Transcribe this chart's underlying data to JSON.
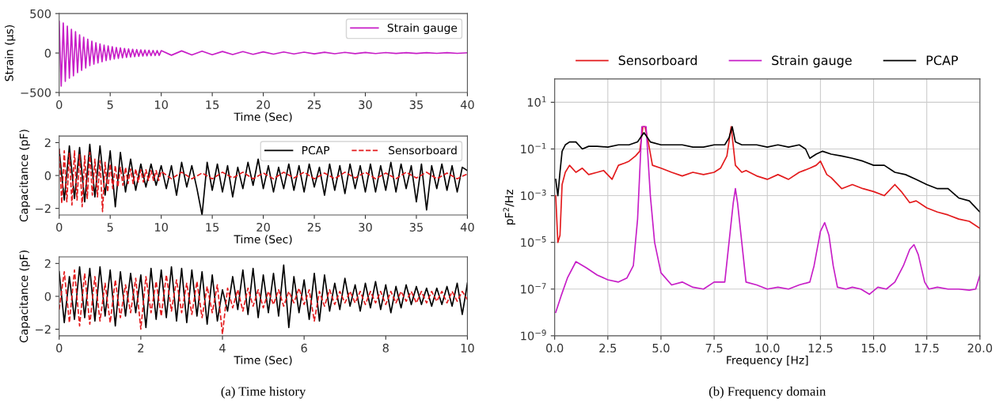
{
  "chart_data": [
    {
      "type": "line",
      "xlabel": "Time (Sec)",
      "ylabel": "Strain (μs)",
      "xlim": [
        0,
        40
      ],
      "ylim": [
        -500,
        500
      ],
      "xticks": [
        0,
        5,
        10,
        15,
        20,
        25,
        30,
        35,
        40
      ],
      "yticks": [
        {
          "value": -500,
          "label": "−500"
        },
        0,
        500
      ],
      "grid": false,
      "legend": "top right",
      "x": [
        0,
        0.2,
        0.4,
        0.6,
        0.8,
        1.0,
        1.2,
        1.4,
        1.6,
        1.8,
        2.0,
        2.2,
        2.4,
        2.6,
        2.8,
        3.0,
        3.2,
        3.4,
        3.6,
        3.8,
        4.0,
        4.2,
        4.4,
        4.6,
        4.8,
        5.0,
        5.2,
        5.4,
        5.6,
        5.8,
        6.0,
        6.2,
        6.4,
        6.6,
        6.8,
        7.0,
        7.2,
        7.4,
        7.6,
        7.8,
        8.0,
        8.2,
        8.4,
        8.6,
        8.8,
        9.0,
        9.2,
        9.4,
        9.6,
        9.8,
        10,
        11,
        12,
        13,
        14,
        15,
        16,
        17,
        18,
        19,
        20,
        21,
        22,
        23,
        24,
        25,
        26,
        27,
        28,
        29,
        30,
        31,
        32,
        33,
        34,
        35,
        36,
        37,
        38,
        39,
        40
      ],
      "series": [
        {
          "name": "Strain gauge",
          "color": "#c71ec7",
          "line_style": "solid",
          "values": [
            400,
            -420,
            380,
            -360,
            340,
            -320,
            300,
            -290,
            270,
            -250,
            230,
            -220,
            200,
            -190,
            175,
            -160,
            150,
            -140,
            130,
            -125,
            115,
            -110,
            100,
            -95,
            90,
            -85,
            80,
            -75,
            70,
            -68,
            65,
            -60,
            58,
            -55,
            52,
            -50,
            48,
            -46,
            44,
            -42,
            40,
            -38,
            37,
            -36,
            35,
            -34,
            33,
            -32,
            31,
            -30,
            30,
            -28,
            27,
            -25,
            24,
            -22,
            20,
            -19,
            18,
            -17,
            15,
            -14,
            13,
            -12,
            11,
            -10,
            10,
            -9,
            8,
            -8,
            7,
            -7,
            6,
            -6,
            5,
            -5,
            5,
            -4,
            4,
            -4,
            3
          ]
        }
      ]
    },
    {
      "type": "line",
      "xlabel": "Time (Sec)",
      "ylabel": "Capacitance (pF)",
      "xlim": [
        0,
        40
      ],
      "ylim": [
        -2.4,
        2.4
      ],
      "xticks": [
        0,
        5,
        10,
        15,
        20,
        25,
        30,
        35,
        40
      ],
      "yticks": [
        {
          "value": -2,
          "label": "−2"
        },
        0,
        2
      ],
      "grid": false,
      "legend": "top right",
      "series": [
        {
          "name": "PCAP",
          "color": "#000000",
          "line_style": "solid",
          "x": [
            0,
            0.5,
            1,
            1.5,
            2,
            2.5,
            3,
            3.5,
            4,
            4.5,
            5,
            5.5,
            6,
            6.5,
            7,
            7.5,
            8,
            8.5,
            9,
            9.5,
            10,
            10.5,
            11,
            11.5,
            12,
            12.5,
            13,
            13.5,
            14,
            14.5,
            15,
            15.5,
            16,
            16.5,
            17,
            17.5,
            18,
            18.5,
            19,
            19.5,
            20,
            20.5,
            21,
            21.5,
            22,
            22.5,
            23,
            23.5,
            24,
            24.5,
            25,
            25.5,
            26,
            26.5,
            27,
            27.5,
            28,
            28.5,
            29,
            29.5,
            30,
            30.5,
            31,
            31.5,
            32,
            32.5,
            33,
            33.5,
            34,
            34.5,
            35,
            35.5,
            36,
            36.5,
            37,
            37.5,
            38,
            38.5,
            39,
            39.5,
            40
          ],
          "values": [
            1.6,
            -1.5,
            1.8,
            -1.4,
            1.7,
            -1.6,
            1.9,
            -1.3,
            1.8,
            -1.2,
            1.5,
            -1.9,
            1.4,
            -1.0,
            1.0,
            -0.9,
            0.7,
            -0.7,
            0.7,
            -0.6,
            0.6,
            -0.8,
            0.6,
            -1.2,
            0.8,
            -0.7,
            0.6,
            -0.8,
            -2.4,
            0.8,
            -0.9,
            0.7,
            -1.0,
            0.6,
            -1.3,
            0.5,
            -0.8,
            0.8,
            -0.6,
            1.0,
            -0.8,
            0.6,
            -1.0,
            0.5,
            -0.8,
            0.7,
            -0.9,
            0.6,
            -1.0,
            0.7,
            -0.7,
            0.5,
            -1.2,
            0.7,
            -0.9,
            0.6,
            -1.1,
            0.7,
            -0.8,
            0.6,
            -1.0,
            0.7,
            -1.0,
            0.6,
            -0.9,
            0.8,
            -1.0,
            0.7,
            -0.8,
            0.6,
            -1.6,
            0.7,
            -2.1,
            0.6,
            -0.8,
            0.7,
            -0.9,
            0.6,
            -1.0,
            0.5,
            0.3
          ]
        },
        {
          "name": "Sensorboard",
          "color": "#e31a1c",
          "line_style": "dashed",
          "x": [
            0,
            0.25,
            0.5,
            0.75,
            1,
            1.25,
            1.5,
            1.75,
            2,
            2.25,
            2.5,
            2.75,
            3,
            3.25,
            3.5,
            3.75,
            4,
            4.25,
            4.5,
            4.75,
            5,
            5.25,
            5.5,
            5.75,
            6,
            6.25,
            6.5,
            6.75,
            7,
            7.25,
            7.5,
            7.75,
            8,
            8.25,
            8.5,
            8.75,
            9,
            9.25,
            9.5,
            9.75,
            10,
            11,
            12,
            13,
            14,
            15,
            16,
            17,
            18,
            19,
            20,
            21,
            22,
            23,
            24,
            25,
            26,
            27,
            28,
            29,
            30,
            31,
            32,
            33,
            34,
            35,
            36,
            37,
            38,
            39,
            40
          ],
          "values": [
            1.6,
            -1.7,
            1.5,
            -1.6,
            1.4,
            -1.8,
            1.5,
            -1.5,
            1.3,
            -1.9,
            1.2,
            -1.4,
            1.4,
            -1.2,
            1.0,
            -1.3,
            0.9,
            -2.2,
            0.8,
            -1.0,
            0.7,
            -0.8,
            0.6,
            -0.7,
            0.5,
            -0.6,
            0.5,
            -0.5,
            0.4,
            -0.5,
            0.4,
            -0.4,
            0.35,
            -0.4,
            0.35,
            -0.3,
            0.3,
            -0.3,
            0.3,
            -0.3,
            0.25,
            -0.2,
            0.2,
            -0.2,
            0.15,
            -0.2,
            0.2,
            -0.15,
            0.2,
            -0.2,
            0.15,
            -0.2,
            0.2,
            -0.15,
            0.2,
            -0.2,
            0.15,
            -0.2,
            0.2,
            -0.15,
            0.2,
            -0.2,
            0.15,
            -0.2,
            0.2,
            -0.15,
            0.2,
            -0.2,
            0.15,
            -0.2,
            0.1
          ]
        }
      ]
    },
    {
      "type": "line",
      "xlabel": "Time (Sec)",
      "ylabel": "Capacitance (pF)",
      "xlim": [
        0,
        10
      ],
      "ylim": [
        -2.4,
        2.4
      ],
      "xticks": [
        0,
        2,
        4,
        6,
        8,
        10
      ],
      "yticks": [
        {
          "value": -2,
          "label": "−2"
        },
        0,
        2
      ],
      "grid": false,
      "annotations": [
        "(a) Time history"
      ],
      "x": [
        0,
        0.125,
        0.25,
        0.375,
        0.5,
        0.625,
        0.75,
        0.875,
        1,
        1.125,
        1.25,
        1.375,
        1.5,
        1.625,
        1.75,
        1.875,
        2,
        2.125,
        2.25,
        2.375,
        2.5,
        2.625,
        2.75,
        2.875,
        3,
        3.125,
        3.25,
        3.375,
        3.5,
        3.625,
        3.75,
        3.875,
        4,
        4.125,
        4.25,
        4.375,
        4.5,
        4.625,
        4.75,
        4.875,
        5,
        5.125,
        5.25,
        5.375,
        5.5,
        5.625,
        5.75,
        5.875,
        6,
        6.125,
        6.25,
        6.375,
        6.5,
        6.625,
        6.75,
        6.875,
        7,
        7.125,
        7.25,
        7.375,
        7.5,
        7.625,
        7.75,
        7.875,
        8,
        8.125,
        8.25,
        8.375,
        8.5,
        8.625,
        8.75,
        8.875,
        9,
        9.125,
        9.25,
        9.375,
        9.5,
        9.625,
        9.75,
        9.875,
        10
      ],
      "series": [
        {
          "color": "#000000",
          "line_style": "solid",
          "values": [
            1.5,
            -1.6,
            1.2,
            -1.4,
            1.8,
            -1.3,
            1.7,
            -1.5,
            1.8,
            -1.2,
            1.6,
            -1.8,
            1.5,
            -1.2,
            1.4,
            -1.0,
            1.3,
            -1.9,
            1.7,
            -1.4,
            1.6,
            -1.3,
            1.8,
            -1.5,
            1.7,
            -1.6,
            1.6,
            -1.2,
            1.5,
            -1.7,
            1.3,
            -1.5,
            0.4,
            -0.9,
            1.2,
            -0.8,
            1.6,
            -1.1,
            1.7,
            -1.3,
            1.3,
            -1.0,
            1.4,
            -1.2,
            1.9,
            -1.9,
            1.2,
            -1.0,
            1.0,
            -1.4,
            1.4,
            -1.5,
            1.3,
            -0.9,
            0.8,
            -0.8,
            1.1,
            -0.6,
            0.7,
            -0.9,
            0.8,
            -0.7,
            0.9,
            -0.8,
            0.7,
            -1.0,
            0.6,
            -0.7,
            0.7,
            -0.5,
            0.6,
            -0.5,
            0.5,
            -0.6,
            0.5,
            -0.5,
            0.6,
            -0.6,
            0.8,
            -1.1,
            0.8
          ]
        },
        {
          "color": "#e31a1c",
          "line_style": "dashed",
          "values": [
            -0.8,
            1.5,
            -1.6,
            1.6,
            -1.8,
            1.4,
            -1.7,
            1.2,
            -1.5,
            0.8,
            -1.6,
            1.0,
            -1.3,
            0.7,
            -1.0,
            1.1,
            -2.0,
            1.2,
            -1.0,
            0.9,
            -1.2,
            1.3,
            -0.9,
            1.0,
            -1.0,
            0.8,
            -1.1,
            0.9,
            -1.3,
            0.6,
            -1.0,
            0.7,
            -2.3,
            0.5,
            -0.7,
            0.4,
            -0.9,
            0.5,
            -0.6,
            0.4,
            -0.7,
            0.3,
            -0.5,
            0.4,
            -0.6,
            0.3,
            -0.4,
            0.5,
            -0.5,
            0.4,
            -1.5,
            0.3,
            -0.6,
            0.4,
            -0.5,
            0.3,
            -0.4,
            0.3,
            -0.4,
            0.3,
            -0.5,
            0.3,
            -0.4,
            0.3,
            -0.5,
            0.3,
            -0.4,
            0.3,
            -0.3,
            0.3,
            -0.4,
            0.3,
            -0.4,
            0.3,
            -0.3,
            0.3,
            -0.4,
            0.3,
            -0.3,
            0.3,
            -0.2
          ]
        }
      ]
    },
    {
      "type": "line",
      "xlabel": "Frequency [Hz]",
      "ylabel": "pF$^{2}$/Hz",
      "log": "y",
      "xlim": [
        0,
        20
      ],
      "ylim": [
        1e-09,
        100
      ],
      "xticks": [
        {
          "value": 0,
          "label": "0.0"
        },
        {
          "value": 2.5,
          "label": "2.5"
        },
        {
          "value": 5,
          "label": "5.0"
        },
        {
          "value": 7.5,
          "label": "7.5"
        },
        {
          "value": 10,
          "label": "10.0"
        },
        {
          "value": 12.5,
          "label": "12.5"
        },
        {
          "value": 15,
          "label": "15.0"
        },
        {
          "value": 17.5,
          "label": "17.5"
        },
        {
          "value": 20,
          "label": "20.0"
        }
      ],
      "yticks": [
        {
          "value": 1e-09,
          "label": "10$^{−9}$"
        },
        {
          "value": 1e-07,
          "label": "10$^{−7}$"
        },
        {
          "value": 1e-05,
          "label": "10$^{−5}$"
        },
        {
          "value": 0.001,
          "label": "10$^{−3}$"
        },
        {
          "value": 0.1,
          "label": "10$^{−1}$"
        },
        {
          "value": 10,
          "label": "10$^{1}$"
        }
      ],
      "grid": true,
      "legend": "top",
      "annotations": [
        "(b) Frequency domain"
      ],
      "series": [
        {
          "name": "Sensorboard",
          "color": "#e31a1c",
          "line_style": "solid",
          "x": [
            0.05,
            0.15,
            0.25,
            0.35,
            0.5,
            0.7,
            1,
            1.3,
            1.6,
            2,
            2.3,
            2.7,
            3,
            3.3,
            3.5,
            3.8,
            4,
            4.15,
            4.25,
            4.4,
            4.6,
            5,
            5.5,
            6,
            6.5,
            7,
            7.5,
            7.8,
            8.1,
            8.3,
            8.5,
            8.8,
            9,
            9.5,
            10,
            10.5,
            11,
            11.5,
            12,
            12.3,
            12.5,
            12.8,
            13,
            13.5,
            14,
            14.5,
            15,
            15.5,
            16,
            16.3,
            16.7,
            17,
            17.5,
            18,
            18.5,
            19,
            19.5,
            20
          ],
          "values": [
            0.001,
            1e-05,
            2e-05,
            0.003,
            0.01,
            0.02,
            0.01,
            0.015,
            0.008,
            0.01,
            0.012,
            0.005,
            0.02,
            0.025,
            0.03,
            0.05,
            0.08,
            0.9,
            0.9,
            0.2,
            0.02,
            0.015,
            0.01,
            0.007,
            0.01,
            0.008,
            0.01,
            0.015,
            0.05,
            0.9,
            0.02,
            0.01,
            0.012,
            0.007,
            0.005,
            0.008,
            0.005,
            0.01,
            0.015,
            0.02,
            0.03,
            0.008,
            0.006,
            0.002,
            0.003,
            0.002,
            0.0015,
            0.001,
            0.003,
            0.0015,
            0.0005,
            0.0006,
            0.0003,
            0.0002,
            0.00015,
            0.0001,
            8e-05,
            4e-05
          ]
        },
        {
          "name": "Strain gauge",
          "color": "#c71ec7",
          "line_style": "solid",
          "x": [
            0.05,
            0.3,
            0.6,
            1,
            1.5,
            2,
            2.5,
            3,
            3.4,
            3.7,
            3.9,
            4.1,
            4.3,
            4.5,
            4.7,
            5,
            5.5,
            6,
            6.5,
            7,
            7.5,
            8,
            8.2,
            8.4,
            8.5,
            8.6,
            8.8,
            9,
            9.5,
            10,
            10.5,
            11,
            11.5,
            12,
            12.2,
            12.5,
            12.7,
            12.9,
            13.1,
            13.3,
            13.7,
            14,
            14.4,
            14.8,
            15.2,
            15.6,
            16,
            16.4,
            16.7,
            16.9,
            17.1,
            17.4,
            17.6,
            18,
            18.5,
            19,
            19.5,
            19.8,
            20
          ],
          "values": [
            1e-08,
            5e-08,
            3e-07,
            1.5e-06,
            8e-07,
            4e-07,
            2.5e-07,
            2e-07,
            3e-07,
            1e-06,
            0.0001,
            0.9,
            0.9,
            0.001,
            1e-05,
            5e-07,
            1.5e-07,
            2e-07,
            1.2e-07,
            1e-07,
            2e-07,
            2e-07,
            1e-05,
            0.0005,
            0.002,
            0.0005,
            1e-05,
            2e-07,
            1.5e-07,
            1e-07,
            1.2e-07,
            1e-07,
            1.5e-07,
            2e-07,
            1e-06,
            3e-05,
            7e-05,
            2e-05,
            1e-06,
            1.2e-07,
            1e-07,
            1.2e-07,
            1e-07,
            6e-08,
            1.2e-07,
            1e-07,
            2e-07,
            1e-06,
            5e-06,
            8e-06,
            3e-06,
            2e-07,
            1e-07,
            1.2e-07,
            1e-07,
            1e-07,
            9e-08,
            1e-07,
            4e-07
          ]
        },
        {
          "name": "PCAP",
          "color": "#000000",
          "line_style": "solid",
          "x": [
            0.05,
            0.15,
            0.25,
            0.35,
            0.5,
            0.7,
            1,
            1.3,
            1.6,
            2,
            2.5,
            3,
            3.5,
            3.9,
            4.2,
            4.5,
            5,
            5.5,
            6,
            6.5,
            7,
            7.5,
            8,
            8.2,
            8.35,
            8.5,
            8.8,
            9,
            9.5,
            10,
            10.5,
            11,
            11.5,
            11.8,
            12,
            12.3,
            12.6,
            13,
            13.5,
            14,
            14.5,
            15,
            15.5,
            16,
            16.5,
            17,
            17.5,
            18,
            18.5,
            19,
            19.5,
            20
          ],
          "values": [
            0.005,
            0.001,
            0.01,
            0.08,
            0.15,
            0.2,
            0.2,
            0.1,
            0.13,
            0.13,
            0.12,
            0.15,
            0.15,
            0.2,
            0.5,
            0.2,
            0.15,
            0.15,
            0.15,
            0.12,
            0.12,
            0.15,
            0.15,
            0.3,
            0.9,
            0.2,
            0.15,
            0.15,
            0.15,
            0.12,
            0.15,
            0.12,
            0.15,
            0.1,
            0.04,
            0.06,
            0.08,
            0.06,
            0.05,
            0.04,
            0.03,
            0.02,
            0.02,
            0.01,
            0.008,
            0.005,
            0.003,
            0.002,
            0.002,
            0.0008,
            0.0006,
            0.0002
          ]
        }
      ]
    }
  ]
}
